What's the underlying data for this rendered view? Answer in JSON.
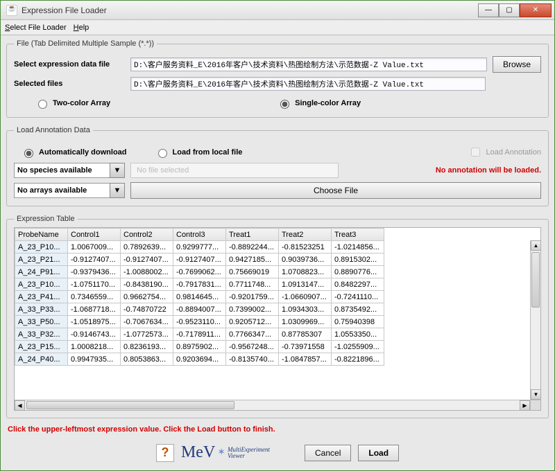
{
  "window": {
    "title": "Expression File Loader"
  },
  "menu": {
    "select_file_loader": "Select File Loader",
    "help": "Help"
  },
  "file_group": {
    "legend": "File    (Tab Delimited Multiple Sample (*.*))",
    "select_label": "Select expression data file",
    "selected_label": "Selected files",
    "path_value": "D:\\客户服务资料_E\\2016年客户\\技术资料\\热图绘制方法\\示范数据-Z Value.txt",
    "browse": "Browse",
    "two_color": "Two-color Array",
    "single_color": "Single-color Array"
  },
  "annot_group": {
    "legend": "Load Annotation Data",
    "auto": "Automatically download",
    "local": "Load from local file",
    "load_annot": "Load Annotation",
    "warn": "No annotation will be loaded.",
    "species_combo": "No species available",
    "arrays_combo": "No arrays available",
    "no_file": "No file selected",
    "choose": "Choose File"
  },
  "table": {
    "legend": "Expression Table",
    "columns": [
      "ProbeName",
      "Control1",
      "Control2",
      "Control3",
      "Treat1",
      "Treat2",
      "Treat3"
    ],
    "rows": [
      [
        "A_23_P10...",
        "1.0067009...",
        "0.7892639...",
        "0.9299777...",
        "-0.8892244...",
        "-0.81523251",
        "-1.0214856..."
      ],
      [
        "A_23_P21...",
        "-0.9127407...",
        "-0.9127407...",
        "-0.9127407...",
        "0.9427185...",
        "0.9039736...",
        "0.8915302..."
      ],
      [
        "A_24_P91...",
        "-0.9379436...",
        "-1.0088002...",
        "-0.7699062...",
        "0.75669019",
        "1.0708823...",
        "0.8890776..."
      ],
      [
        "A_23_P10...",
        "-1.0751170...",
        "-0.8438190...",
        "-0.7917831...",
        "0.7711748...",
        "1.0913147...",
        "0.8482297..."
      ],
      [
        "A_23_P41...",
        "0.7346559...",
        "0.9662754...",
        "0.9814645...",
        "-0.9201759...",
        "-1.0660907...",
        "-0.7241110..."
      ],
      [
        "A_33_P33...",
        "-1.0687718...",
        "-0.74870722",
        "-0.8894007...",
        "0.7399002...",
        "1.0934303...",
        "0.8735492..."
      ],
      [
        "A_33_P50...",
        "-1.0518975...",
        "-0.7067634...",
        "-0.9523110...",
        "0.9205712...",
        "1.0309969...",
        "0.75940398"
      ],
      [
        "A_33_P32...",
        "-0.9146743...",
        "-1.0772573...",
        "-0.7178911...",
        "0.7766347...",
        "0.87785307",
        "1.0553350..."
      ],
      [
        "A_23_P15...",
        "1.0008218...",
        "0.8236193...",
        "0.8975902...",
        "-0.9567248...",
        "-0.73971558",
        "-1.0255909..."
      ],
      [
        "A_24_P40...",
        "0.9947935...",
        "0.8053863...",
        "0.9203694...",
        "-0.8135740...",
        "-1.0847857...",
        "-0.8221896..."
      ]
    ]
  },
  "instruction": "Click the upper-leftmost expression value. Click the Load button to finish.",
  "footer": {
    "logo_main": "MeV",
    "logo_star": "✶",
    "logo_sub1": "MultiExperiment",
    "logo_sub2": "Viewer",
    "cancel": "Cancel",
    "load": "Load"
  }
}
